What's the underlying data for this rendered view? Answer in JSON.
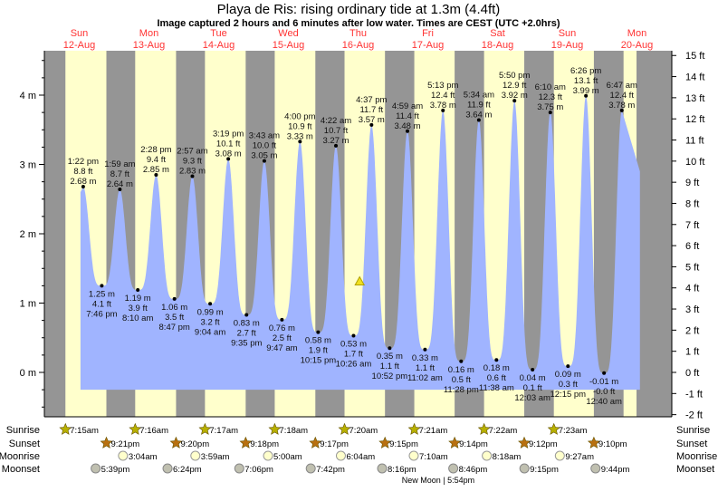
{
  "chart_data": {
    "type": "area",
    "title": "Playa de Ris: rising  ordinary tide at 1.3m (4.4ft)",
    "subtitle": "Image captured 2 hours and 6 minutes after low water. Times are CEST (UTC +2.0hrs)",
    "days": [
      {
        "name": "Sun",
        "date": "12-Aug"
      },
      {
        "name": "Mon",
        "date": "13-Aug"
      },
      {
        "name": "Tue",
        "date": "14-Aug"
      },
      {
        "name": "Wed",
        "date": "15-Aug"
      },
      {
        "name": "Thu",
        "date": "16-Aug"
      },
      {
        "name": "Fri",
        "date": "17-Aug"
      },
      {
        "name": "Sat",
        "date": "18-Aug"
      },
      {
        "name": "Sun",
        "date": "19-Aug"
      },
      {
        "name": "Mon",
        "date": "20-Aug"
      }
    ],
    "y_left": {
      "unit": "m",
      "ticks": [
        "0 m",
        "1 m",
        "2 m",
        "3 m",
        "4 m"
      ],
      "values": [
        0,
        1,
        2,
        3,
        4
      ]
    },
    "y_right": {
      "unit": "ft",
      "ticks": [
        "-2 ft",
        "-1 ft",
        "0 ft",
        "1 ft",
        "2 ft",
        "3 ft",
        "4 ft",
        "5 ft",
        "6 ft",
        "7 ft",
        "8 ft",
        "9 ft",
        "10 ft",
        "11 ft",
        "12 ft",
        "13 ft",
        "14 ft",
        "15 ft"
      ],
      "values": [
        -2,
        -1,
        0,
        1,
        2,
        3,
        4,
        5,
        6,
        7,
        8,
        9,
        10,
        11,
        12,
        13,
        14,
        15
      ]
    },
    "extremes": [
      {
        "day": 0,
        "time": "1:22 pm",
        "m": 2.68,
        "ft": "8.8 ft",
        "type": "high"
      },
      {
        "day": 0,
        "time": "7:46 pm",
        "m": 1.25,
        "ft": "4.1 ft",
        "type": "low"
      },
      {
        "day": 1,
        "time": "1:59 am",
        "m": 2.64,
        "ft": "8.7 ft",
        "type": "high"
      },
      {
        "day": 1,
        "time": "8:10 am",
        "m": 1.19,
        "ft": "3.9 ft",
        "type": "low"
      },
      {
        "day": 1,
        "time": "2:28 pm",
        "m": 2.85,
        "ft": "9.4 ft",
        "type": "high"
      },
      {
        "day": 1,
        "time": "8:47 pm",
        "m": 1.06,
        "ft": "3.5 ft",
        "type": "low"
      },
      {
        "day": 2,
        "time": "2:57 am",
        "m": 2.83,
        "ft": "9.3 ft",
        "type": "high"
      },
      {
        "day": 2,
        "time": "9:04 am",
        "m": 0.99,
        "ft": "3.2 ft",
        "type": "low"
      },
      {
        "day": 2,
        "time": "3:19 pm",
        "m": 3.08,
        "ft": "10.1 ft",
        "type": "high"
      },
      {
        "day": 2,
        "time": "9:35 pm",
        "m": 0.83,
        "ft": "2.7 ft",
        "type": "low"
      },
      {
        "day": 3,
        "time": "3:43 am",
        "m": 3.05,
        "ft": "10.0 ft",
        "type": "high"
      },
      {
        "day": 3,
        "time": "9:47 am",
        "m": 0.76,
        "ft": "2.5 ft",
        "type": "low"
      },
      {
        "day": 3,
        "time": "4:00 pm",
        "m": 3.33,
        "ft": "10.9 ft",
        "type": "high"
      },
      {
        "day": 3,
        "time": "10:15 pm",
        "m": 0.58,
        "ft": "1.9 ft",
        "type": "low"
      },
      {
        "day": 4,
        "time": "4:22 am",
        "m": 3.27,
        "ft": "10.7 ft",
        "type": "high"
      },
      {
        "day": 4,
        "time": "10:26 am",
        "m": 0.53,
        "ft": "1.7 ft",
        "type": "low"
      },
      {
        "day": 4,
        "time": "4:37 pm",
        "m": 3.57,
        "ft": "11.7 ft",
        "type": "high"
      },
      {
        "day": 4,
        "time": "10:52 pm",
        "m": 0.35,
        "ft": "1.1 ft",
        "type": "low"
      },
      {
        "day": 5,
        "time": "4:59 am",
        "m": 3.48,
        "ft": "11.4 ft",
        "type": "high"
      },
      {
        "day": 5,
        "time": "11:02 am",
        "m": 0.33,
        "ft": "1.1 ft",
        "type": "low"
      },
      {
        "day": 5,
        "time": "5:13 pm",
        "m": 3.78,
        "ft": "12.4 ft",
        "type": "high"
      },
      {
        "day": 5,
        "time": "11:28 pm",
        "m": 0.16,
        "ft": "0.5 ft",
        "type": "low"
      },
      {
        "day": 6,
        "time": "5:34 am",
        "m": 3.64,
        "ft": "11.9 ft",
        "type": "high"
      },
      {
        "day": 6,
        "time": "11:38 am",
        "m": 0.18,
        "ft": "0.6 ft",
        "type": "low"
      },
      {
        "day": 6,
        "time": "5:50 pm",
        "m": 3.92,
        "ft": "12.9 ft",
        "type": "high"
      },
      {
        "day": 7,
        "time": "12:03 am",
        "m": 0.04,
        "ft": "0.1 ft",
        "type": "low"
      },
      {
        "day": 7,
        "time": "6:10 am",
        "m": 3.75,
        "ft": "12.3 ft",
        "type": "high"
      },
      {
        "day": 7,
        "time": "12:15 pm",
        "m": 0.09,
        "ft": "0.3 ft",
        "type": "low"
      },
      {
        "day": 7,
        "time": "6:26 pm",
        "m": 3.99,
        "ft": "13.1 ft",
        "type": "high"
      },
      {
        "day": 8,
        "time": "12:40 am",
        "m": -0.01,
        "ft": "-0.0 ft",
        "type": "low"
      },
      {
        "day": 8,
        "time": "6:47 am",
        "m": 3.78,
        "ft": "12.4 ft",
        "type": "high"
      }
    ],
    "current": {
      "day": 4,
      "time": "12:32 pm",
      "m": 1.3
    },
    "sunrise": [
      "7:15am",
      "7:16am",
      "7:17am",
      "7:18am",
      "7:20am",
      "7:21am",
      "7:22am",
      "7:23am"
    ],
    "sunset": [
      "9:21pm",
      "9:20pm",
      "9:18pm",
      "9:17pm",
      "9:15pm",
      "9:14pm",
      "9:12pm",
      "9:10pm"
    ],
    "moonrise": [
      {
        "day": 1,
        "time": "3:04am"
      },
      {
        "day": 2,
        "time": "3:59am"
      },
      {
        "day": 3,
        "time": "5:00am"
      },
      {
        "day": 4,
        "time": "6:04am"
      },
      {
        "day": 5,
        "time": "7:10am"
      },
      {
        "day": 6,
        "time": "8:18am"
      },
      {
        "day": 7,
        "time": "9:27am"
      }
    ],
    "moonset": [
      {
        "day": 0,
        "time": "5:39pm"
      },
      {
        "day": 1,
        "time": "6:24pm"
      },
      {
        "day": 2,
        "time": "7:06pm"
      },
      {
        "day": 3,
        "time": "7:42pm"
      },
      {
        "day": 4,
        "time": "8:16pm"
      },
      {
        "day": 5,
        "time": "8:46pm"
      },
      {
        "day": 6,
        "time": "9:15pm"
      },
      {
        "day": 7,
        "time": "9:44pm"
      }
    ],
    "row_labels": {
      "sunrise": "Sunrise",
      "sunset": "Sunset",
      "moonrise": "Moonrise",
      "moonset": "Moonset"
    },
    "moon_phase": "New Moon | 5:54pm",
    "colors": {
      "night": "#959595",
      "day": "#ffffcc",
      "water": "#a0b4ff",
      "day_label": "#ff3333",
      "sunrise": "#b8b000",
      "sunset": "#b87010",
      "moonrise": "#ffffcc",
      "moonset": "#c0c0b0"
    }
  }
}
